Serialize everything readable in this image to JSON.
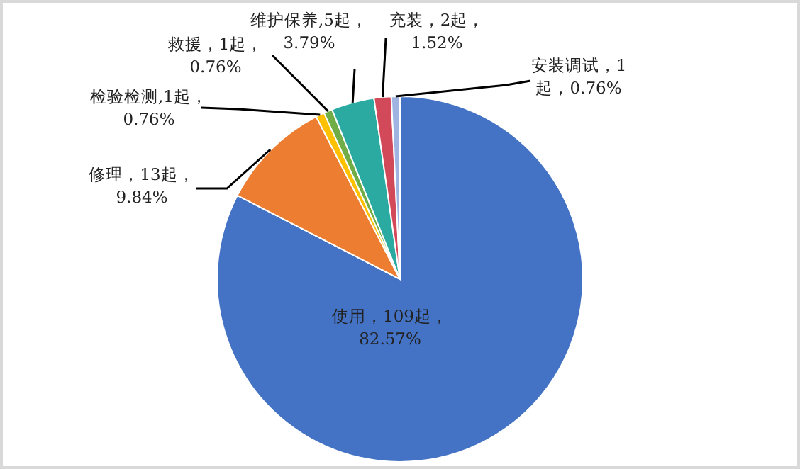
{
  "chart_data": {
    "type": "pie",
    "categories": [
      "使用",
      "修理",
      "检验检测",
      "救援",
      "维护保养",
      "充装",
      "安装调试"
    ],
    "values": [
      109,
      13,
      1,
      1,
      5,
      2,
      1
    ],
    "value_labels": [
      "，109起，\n82.57%",
      "，13起，\n9.84%",
      ",1起，\n0.76%",
      "，1起，\n0.76%",
      ",5起，\n3.79%",
      "，2起，\n1.52%",
      "，1\n起，0.76%"
    ],
    "colors": [
      "#4472c4",
      "#ed7d31",
      "#ffc000",
      "#70ad47",
      "#2aaaa0",
      "#d24a5a",
      "#9fb4e0"
    ]
  }
}
